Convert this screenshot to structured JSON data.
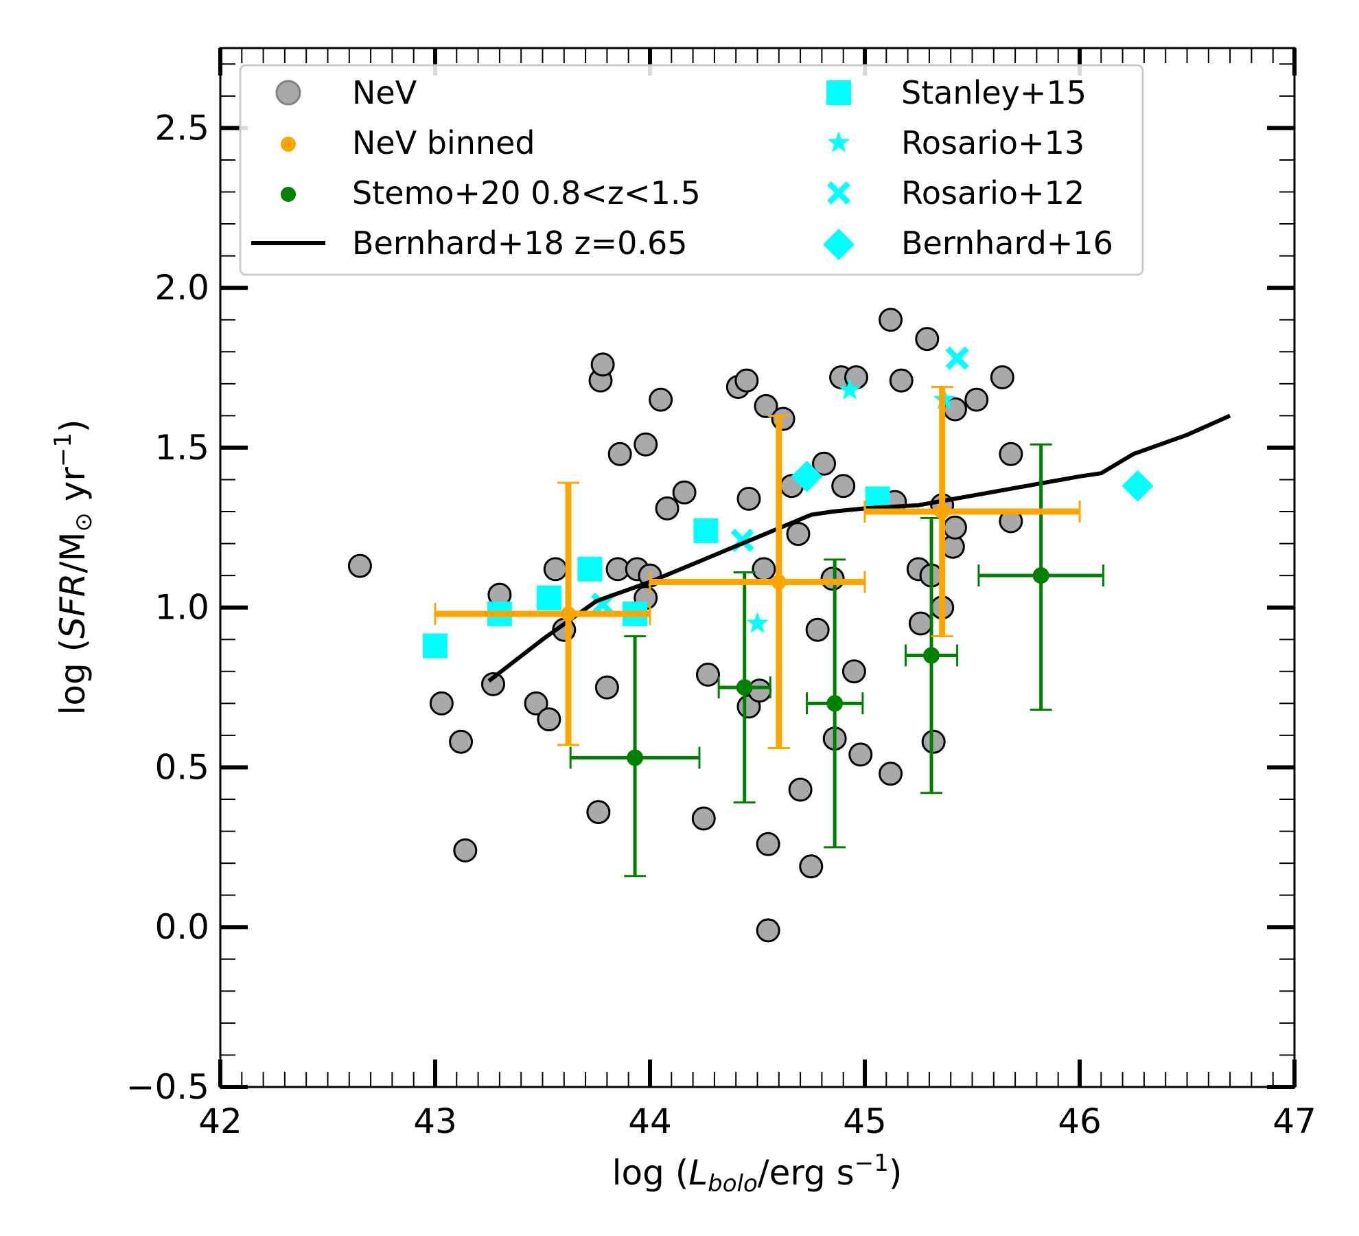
{
  "chart_data": {
    "type": "scatter",
    "xlabel": "log (L_bolo/erg s^-1)",
    "ylabel": "log (SFR/M_sun yr^-1)",
    "xlabel_parts": {
      "pre": "log (",
      "sym": "L",
      "sub": "bolo",
      "mid": "/erg s",
      "sup": "−1",
      "post": ")"
    },
    "ylabel_parts": {
      "pre": "log (",
      "sym": "SFR",
      "mid": "/M",
      "sub": "⊙",
      "unit": " yr",
      "sup": "−1",
      "post": ")"
    },
    "xlim": [
      42,
      47
    ],
    "ylim": [
      -0.5,
      2.75
    ],
    "xticks": [
      42,
      43,
      44,
      45,
      46,
      47
    ],
    "xtick_labels": [
      "42",
      "43",
      "44",
      "45",
      "46",
      "47"
    ],
    "yticks": [
      -0.5,
      0.0,
      0.5,
      1.0,
      1.5,
      2.0,
      2.5
    ],
    "ytick_labels": [
      "−0.5",
      "0.0",
      "0.5",
      "1.0",
      "1.5",
      "2.0",
      "2.5"
    ],
    "legend_position": "top",
    "legend": [
      {
        "label": "NeV",
        "marker": "circle-gray"
      },
      {
        "label": "NeV binned",
        "marker": "dot-orange"
      },
      {
        "label": "Stemo+20 0.8<z<1.5",
        "marker": "dot-green"
      },
      {
        "label": "Bernhard+18 z=0.65",
        "marker": "line-black"
      },
      {
        "label": "Stanley+15",
        "marker": "square-cyan"
      },
      {
        "label": "Rosario+13",
        "marker": "star-cyan"
      },
      {
        "label": "Rosario+12",
        "marker": "x-cyan"
      },
      {
        "label": "Bernhard+16",
        "marker": "diamond-cyan"
      }
    ],
    "series": [
      {
        "name": "NeV",
        "kind": "scatter",
        "color": "#a9a9a9",
        "edge": "#000000",
        "points": [
          [
            42.65,
            1.13
          ],
          [
            43.03,
            0.7
          ],
          [
            43.12,
            0.58
          ],
          [
            43.14,
            0.24
          ],
          [
            43.27,
            0.76
          ],
          [
            43.3,
            1.04
          ],
          [
            43.47,
            0.7
          ],
          [
            43.53,
            0.65
          ],
          [
            43.56,
            1.12
          ],
          [
            43.6,
            0.93
          ],
          [
            43.76,
            0.36
          ],
          [
            43.77,
            1.71
          ],
          [
            43.78,
            1.76
          ],
          [
            43.8,
            0.75
          ],
          [
            43.85,
            1.12
          ],
          [
            43.86,
            1.48
          ],
          [
            43.94,
            1.12
          ],
          [
            43.98,
            1.03
          ],
          [
            43.98,
            1.51
          ],
          [
            44.0,
            1.1
          ],
          [
            44.05,
            1.65
          ],
          [
            44.08,
            1.31
          ],
          [
            44.16,
            1.36
          ],
          [
            44.25,
            0.34
          ],
          [
            44.27,
            0.79
          ],
          [
            44.41,
            1.69
          ],
          [
            44.45,
            1.71
          ],
          [
            44.46,
            0.69
          ],
          [
            44.46,
            1.34
          ],
          [
            44.51,
            0.74
          ],
          [
            44.53,
            1.12
          ],
          [
            44.54,
            1.63
          ],
          [
            44.55,
            0.26
          ],
          [
            44.55,
            -0.01
          ],
          [
            44.62,
            1.59
          ],
          [
            44.66,
            1.38
          ],
          [
            44.69,
            1.23
          ],
          [
            44.7,
            0.43
          ],
          [
            44.75,
            0.19
          ],
          [
            44.78,
            0.93
          ],
          [
            44.81,
            1.45
          ],
          [
            44.85,
            1.09
          ],
          [
            44.86,
            0.59
          ],
          [
            44.89,
            1.72
          ],
          [
            44.9,
            1.38
          ],
          [
            44.95,
            0.8
          ],
          [
            44.96,
            1.72
          ],
          [
            44.98,
            0.54
          ],
          [
            45.12,
            0.48
          ],
          [
            45.14,
            1.33
          ],
          [
            45.12,
            1.9
          ],
          [
            45.17,
            1.71
          ],
          [
            45.25,
            1.12
          ],
          [
            45.26,
            0.95
          ],
          [
            45.29,
            1.84
          ],
          [
            45.31,
            1.1
          ],
          [
            45.32,
            0.58
          ],
          [
            45.36,
            1.0
          ],
          [
            45.36,
            1.32
          ],
          [
            45.41,
            1.19
          ],
          [
            45.42,
            1.25
          ],
          [
            45.42,
            1.62
          ],
          [
            45.52,
            1.65
          ],
          [
            45.64,
            1.72
          ],
          [
            45.68,
            1.48
          ],
          [
            45.68,
            1.27
          ]
        ]
      },
      {
        "name": "NeV binned",
        "kind": "errorbar",
        "color": "#ffa500",
        "points": [
          {
            "x": 43.62,
            "y": 0.98,
            "xerr": [
              0.62,
              0.38
            ],
            "yerr": [
              0.41,
              0.41
            ]
          },
          {
            "x": 44.6,
            "y": 1.08,
            "xerr": [
              0.6,
              0.4
            ],
            "yerr": [
              0.52,
              0.52
            ]
          },
          {
            "x": 45.36,
            "y": 1.3,
            "xerr": [
              0.36,
              0.64
            ],
            "yerr": [
              0.39,
              0.39
            ]
          }
        ]
      },
      {
        "name": "Stemo+20 0.8<z<1.5",
        "kind": "errorbar",
        "color": "#008000",
        "points": [
          {
            "x": 43.93,
            "y": 0.53,
            "xerr": [
              0.3,
              0.3
            ],
            "yerr": [
              0.37,
              0.38
            ]
          },
          {
            "x": 44.44,
            "y": 0.75,
            "xerr": [
              0.12,
              0.12
            ],
            "yerr": [
              0.36,
              0.36
            ]
          },
          {
            "x": 44.86,
            "y": 0.7,
            "xerr": [
              0.13,
              0.13
            ],
            "yerr": [
              0.45,
              0.45
            ]
          },
          {
            "x": 45.31,
            "y": 0.85,
            "xerr": [
              0.12,
              0.12
            ],
            "yerr": [
              0.43,
              0.43
            ]
          },
          {
            "x": 45.82,
            "y": 1.1,
            "xerr": [
              0.29,
              0.29
            ],
            "yerr": [
              0.42,
              0.41
            ]
          }
        ]
      },
      {
        "name": "Bernhard+18 z=0.65",
        "kind": "line",
        "color": "#000000",
        "points": [
          [
            43.25,
            0.77
          ],
          [
            43.5,
            0.9
          ],
          [
            43.75,
            1.02
          ],
          [
            44.0,
            1.08
          ],
          [
            44.25,
            1.15
          ],
          [
            44.5,
            1.22
          ],
          [
            44.75,
            1.29
          ],
          [
            44.85,
            1.3
          ],
          [
            45.0,
            1.31
          ],
          [
            45.25,
            1.32
          ],
          [
            45.5,
            1.35
          ],
          [
            45.75,
            1.38
          ],
          [
            46.0,
            1.41
          ],
          [
            46.1,
            1.42
          ],
          [
            46.25,
            1.48
          ],
          [
            46.5,
            1.54
          ],
          [
            46.7,
            1.6
          ]
        ]
      },
      {
        "name": "Stanley+15",
        "kind": "scatter",
        "color": "#00ffff",
        "marker": "square",
        "points": [
          [
            43.0,
            0.88
          ],
          [
            43.3,
            0.98
          ],
          [
            43.53,
            1.03
          ],
          [
            43.72,
            1.12
          ],
          [
            43.93,
            0.98
          ],
          [
            44.26,
            1.24
          ],
          [
            45.06,
            1.34
          ]
        ]
      },
      {
        "name": "Rosario+13",
        "kind": "scatter",
        "color": "#00ffff",
        "marker": "star",
        "points": [
          [
            44.5,
            0.95
          ],
          [
            44.93,
            1.68
          ],
          [
            45.37,
            1.65
          ]
        ]
      },
      {
        "name": "Rosario+12",
        "kind": "scatter",
        "color": "#00ffff",
        "marker": "x",
        "points": [
          [
            43.78,
            1.01
          ],
          [
            44.43,
            1.21
          ],
          [
            45.43,
            1.78
          ]
        ]
      },
      {
        "name": "Bernhard+16",
        "kind": "scatter",
        "color": "#00ffff",
        "marker": "diamond",
        "points": [
          [
            44.73,
            1.41
          ],
          [
            46.27,
            1.38
          ]
        ]
      }
    ]
  }
}
